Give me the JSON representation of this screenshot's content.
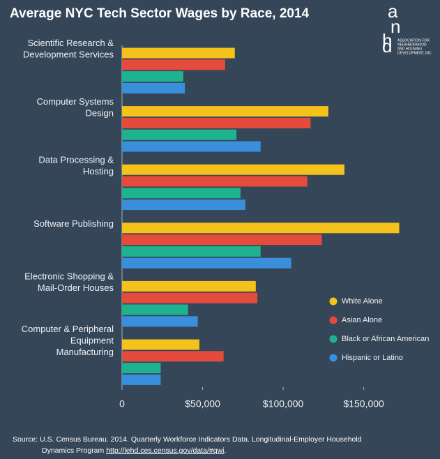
{
  "chart_data": {
    "type": "barh",
    "title": "Average NYC Tech Sector Wages by Race, 2014",
    "logo": {
      "letters": [
        "a",
        "n",
        "h",
        "d"
      ],
      "lines": [
        "ASSOCIATION FOR",
        "NEIGHBORHOOD",
        "AND HOUSING",
        "DEVELOPMENT, INC"
      ]
    },
    "categories": [
      [
        "Scientific Research &",
        "Development Services"
      ],
      [
        "Computer Systems",
        "Design"
      ],
      [
        "Data Processing &",
        "Hosting"
      ],
      [
        "Software Publishing"
      ],
      [
        "Electronic Shopping &",
        "Mail-Order Houses"
      ],
      [
        "Computer & Peripheral",
        "Equipment",
        "Manufacturing"
      ]
    ],
    "series": [
      {
        "name": "White Alone",
        "color": "#f4c21b",
        "values": [
          70000,
          128000,
          138000,
          172000,
          83000,
          48000
        ]
      },
      {
        "name": "Asian Alone",
        "color": "#e54b3c",
        "values": [
          64000,
          117000,
          115000,
          124000,
          84000,
          63000
        ]
      },
      {
        "name": "Black or African American",
        "color": "#1fb28e",
        "values": [
          38000,
          71000,
          73500,
          86000,
          41000,
          24000
        ]
      },
      {
        "name": "Hispanic or Latino",
        "color": "#3a8fdc",
        "values": [
          39000,
          86000,
          76500,
          105000,
          47000,
          24000
        ]
      }
    ],
    "xlim": [
      0,
      180000
    ],
    "xticks": [
      0,
      {
        "value": 50000,
        "label": "$50,000"
      },
      {
        "value": 100000,
        "label": "$100,000"
      },
      {
        "value": 150000,
        "label": "$150,000"
      }
    ],
    "legend": "right",
    "source": {
      "lines": [
        "Source: U.S. Census Bureau. 2014. Quarterly Workforce Indicators Data. Longitudinal-Employer Household",
        "Dynamics Program "
      ],
      "link": "http://lehd.ces.census.gov/data/#qwi",
      "end": "."
    }
  }
}
